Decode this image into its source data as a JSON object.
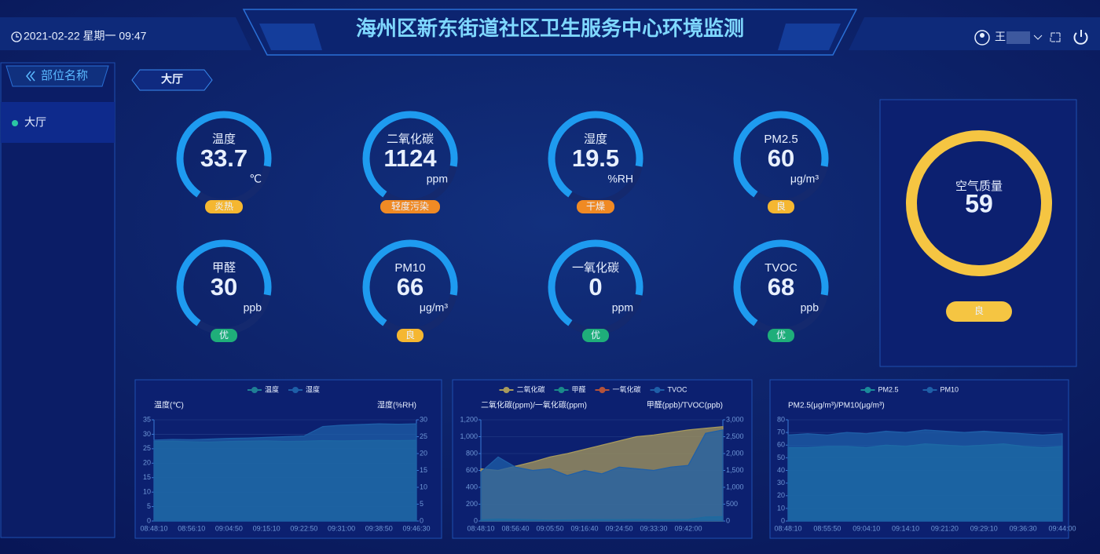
{
  "header": {
    "datetime": "2021-02-22 星期一 09:47",
    "title": "海州区新东街道社区卫生服务中心环境监测",
    "user": "王"
  },
  "sidebar": {
    "title": "部位名称",
    "items": [
      "大厅"
    ]
  },
  "room": "大厅",
  "gauges": [
    {
      "label": "温度",
      "value": "33.7",
      "unit": "℃",
      "status": "炎热",
      "status_color": "#f5b731"
    },
    {
      "label": "二氧化碳",
      "value": "1124",
      "unit": "ppm",
      "status": "轻度污染",
      "status_color": "#f08a24"
    },
    {
      "label": "湿度",
      "value": "19.5",
      "unit": "%RH",
      "status": "干燥",
      "status_color": "#f08a24"
    },
    {
      "label": "PM2.5",
      "value": "60",
      "unit": "μg/m³",
      "status": "良",
      "status_color": "#f5b731"
    },
    {
      "label": "甲醛",
      "value": "30",
      "unit": "ppb",
      "status": "优",
      "status_color": "#1fae7a"
    },
    {
      "label": "PM10",
      "value": "66",
      "unit": "μg/m³",
      "status": "良",
      "status_color": "#f5b731"
    },
    {
      "label": "一氧化碳",
      "value": "0",
      "unit": "ppm",
      "status": "优",
      "status_color": "#1fae7a"
    },
    {
      "label": "TVOC",
      "value": "68",
      "unit": "ppb",
      "status": "优",
      "status_color": "#1fae7a"
    }
  ],
  "aqi": {
    "label": "空气质量",
    "value": "59",
    "status": "良"
  },
  "charts": [
    {
      "type": "area",
      "ylabel": "温度(℃)",
      "y2label": "湿度(%RH)",
      "categories": [
        "08:48:10",
        null,
        "08:56:10",
        null,
        "09:04:50",
        null,
        "09:15:10",
        null,
        "09:22:50",
        null,
        "09:31:00",
        null,
        "09:38:50",
        null,
        "09:46:30"
      ],
      "ylim": [
        0,
        35
      ],
      "yticks": [
        0,
        5,
        10,
        15,
        20,
        25,
        30,
        35
      ],
      "y2lim": [
        0,
        30
      ],
      "y2ticks": [
        0,
        5,
        10,
        15,
        20,
        25,
        30
      ],
      "series": [
        {
          "name": "温度",
          "color": "#1f7f95",
          "axis": "y",
          "values": [
            27.5,
            27.6,
            27.4,
            27.3,
            27.5,
            27.6,
            27.7,
            27.5,
            27.6,
            27.8,
            27.7,
            27.8,
            27.9,
            27.8,
            27.9
          ]
        },
        {
          "name": "湿度",
          "color": "#1e5fa8",
          "axis": "y2",
          "values": [
            24.0,
            24.2,
            24.1,
            24.3,
            24.5,
            24.6,
            24.8,
            25.0,
            25.2,
            28.0,
            28.4,
            28.6,
            28.8,
            28.7,
            28.8
          ]
        }
      ]
    },
    {
      "type": "area",
      "ylabel": "二氧化碳(ppm)/一氧化碳(ppm)",
      "y2label": "甲醛(ppb)/TVOC(ppb)",
      "categories": [
        "08:48:10",
        null,
        "08:56:40",
        null,
        "09:05:50",
        null,
        "09:16:40",
        null,
        "09:24:50",
        null,
        "09:33:30",
        null,
        "09:42:00",
        null,
        null
      ],
      "ylim": [
        0,
        1200
      ],
      "yticks": [
        0,
        200,
        400,
        600,
        800,
        {
          "value": 1000,
          "label": "1,000"
        },
        {
          "value": 1200,
          "label": "1,200"
        }
      ],
      "y2lim": [
        0,
        3000
      ],
      "y2ticks": [
        0,
        500,
        {
          "value": 1000,
          "label": "1,000"
        },
        {
          "value": 1500,
          "label": "1,500"
        },
        {
          "value": 2000,
          "label": "2,000"
        },
        {
          "value": 2500,
          "label": "2,500"
        },
        {
          "value": 3000,
          "label": "3,000"
        }
      ],
      "series": [
        {
          "name": "二氧化碳",
          "color": "#a89a5c",
          "axis": "y",
          "values": [
            620,
            600,
            650,
            700,
            760,
            800,
            850,
            900,
            950,
            1000,
            1020,
            1050,
            1080,
            1100,
            1120
          ]
        },
        {
          "name": "甲醛",
          "color": "#1a8a8a",
          "axis": "y2",
          "values": [
            40,
            60,
            50,
            40,
            30,
            35,
            40,
            45,
            40,
            50,
            45,
            40,
            50,
            120,
            130
          ]
        },
        {
          "name": "一氧化碳",
          "color": "#b5523a",
          "axis": "y",
          "values": [
            0,
            0,
            0,
            0,
            0,
            0,
            0,
            0,
            0,
            0,
            0,
            0,
            0,
            0,
            0
          ]
        },
        {
          "name": "TVOC",
          "color": "#1e5fa8",
          "axis": "y2",
          "values": [
            1450,
            1900,
            1600,
            1500,
            1550,
            1350,
            1500,
            1400,
            1600,
            1550,
            1500,
            1600,
            1650,
            2600,
            2700
          ]
        }
      ]
    },
    {
      "type": "area",
      "ylabel": "PM2.5(μg/m³)/PM10(μg/m³)",
      "categories": [
        "08:48:10",
        null,
        "08:55:50",
        null,
        "09:04:10",
        null,
        "09:14:10",
        null,
        "09:21:20",
        null,
        "09:29:10",
        null,
        "09:36:30",
        null,
        "09:44:00"
      ],
      "ylim": [
        0,
        80
      ],
      "yticks": [
        0,
        10,
        20,
        30,
        40,
        50,
        60,
        70,
        80
      ],
      "series": [
        {
          "name": "PM2.5",
          "color": "#1a8a9a",
          "axis": "y",
          "values": [
            58,
            58,
            59,
            59,
            58,
            60,
            59,
            61,
            60,
            59,
            60,
            61,
            59,
            58,
            59
          ]
        },
        {
          "name": "PM10",
          "color": "#1e5fa8",
          "axis": "y",
          "values": [
            68,
            69,
            68,
            70,
            69,
            71,
            70,
            72,
            71,
            70,
            71,
            70,
            69,
            68,
            69
          ]
        }
      ]
    }
  ]
}
